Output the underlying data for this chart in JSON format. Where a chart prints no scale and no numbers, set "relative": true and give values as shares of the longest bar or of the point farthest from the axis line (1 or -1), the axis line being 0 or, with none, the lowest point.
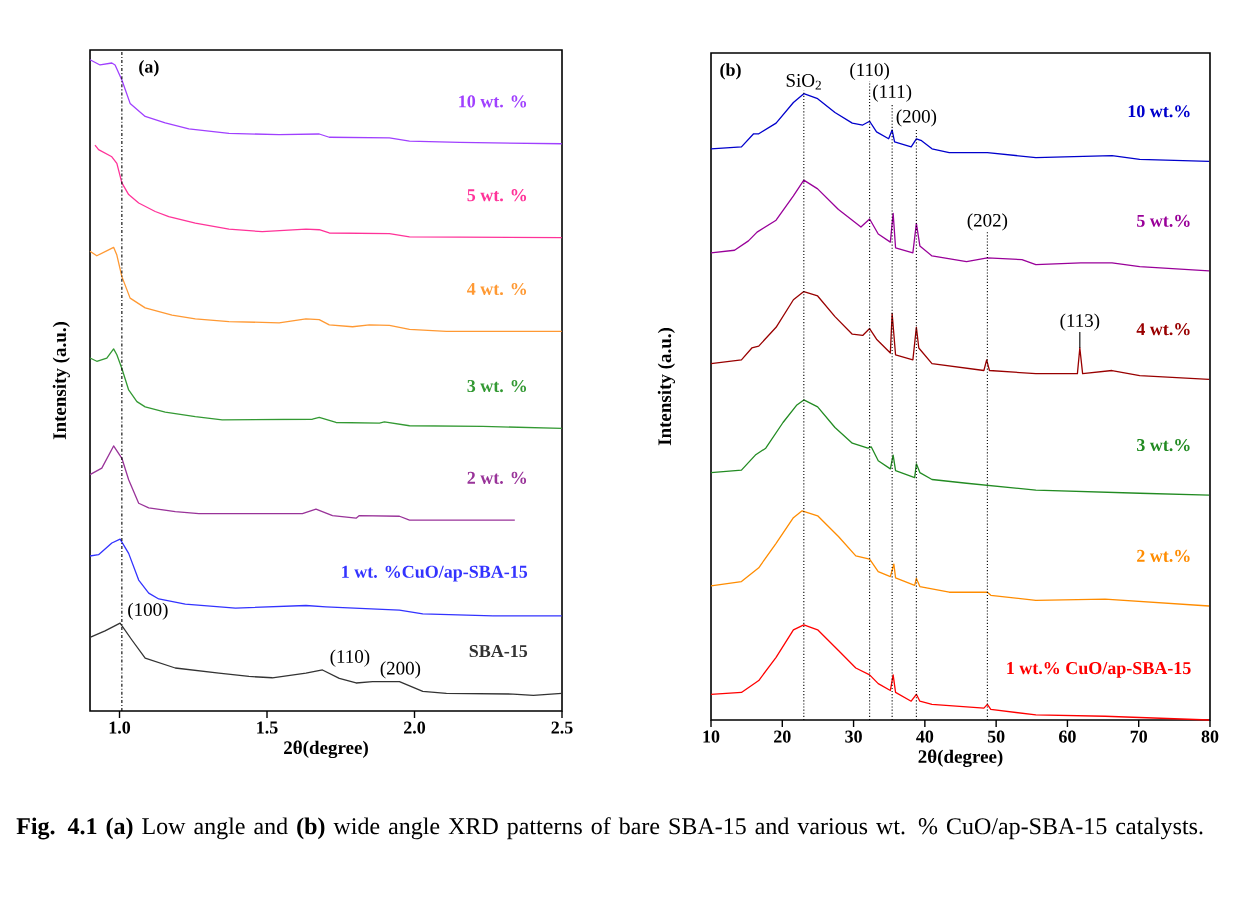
{
  "chart_data": [
    {
      "type": "line",
      "relative": true,
      "xlabel": "2θ(degree)",
      "ylabel": "Intensity (a.u.)",
      "xlim": [
        0.9,
        2.5
      ],
      "xticks": [
        {
          "value": 1,
          "label": "1.0"
        },
        1.5,
        {
          "value": 2,
          "label": "2.0"
        },
        2.5
      ],
      "series": [
        {
          "name": "10 wt. %",
          "color": "#a040ff",
          "x": [
            0.9,
            0.934,
            0.974,
            0.985,
            1.008,
            1.036,
            1.087,
            1.155,
            1.235,
            1.371,
            1.541,
            1.677,
            1.711,
            1.915,
            1.983,
            2.153,
            2.499
          ],
          "values": [
            1.0,
            0.992,
            0.995,
            0.992,
            0.969,
            0.933,
            0.913,
            0.903,
            0.894,
            0.887,
            0.885,
            0.886,
            0.881,
            0.88,
            0.875,
            0.873,
            0.871
          ]
        },
        {
          "name": "5 wt. %",
          "color": "#ff3399",
          "x": [
            0.917,
            0.929,
            0.974,
            0.991,
            1.008,
            1.031,
            1.065,
            1.121,
            1.167,
            1.257,
            1.371,
            1.484,
            1.632,
            1.677,
            1.711,
            1.915,
            1.983,
            2.499
          ],
          "values": [
            0.869,
            0.862,
            0.851,
            0.841,
            0.811,
            0.793,
            0.78,
            0.767,
            0.759,
            0.749,
            0.74,
            0.736,
            0.74,
            0.739,
            0.734,
            0.733,
            0.728,
            0.727
          ]
        },
        {
          "name": "4 wt. %",
          "color": "#ff9933",
          "x": [
            0.9,
            0.923,
            0.98,
            0.991,
            1.008,
            1.036,
            1.087,
            1.178,
            1.257,
            1.371,
            1.541,
            1.632,
            1.677,
            1.711,
            1.79,
            1.847,
            1.915,
            1.983,
            2.108,
            2.499
          ],
          "values": [
            0.706,
            0.699,
            0.712,
            0.7,
            0.667,
            0.634,
            0.619,
            0.608,
            0.602,
            0.598,
            0.596,
            0.602,
            0.601,
            0.593,
            0.59,
            0.593,
            0.592,
            0.586,
            0.583,
            0.583
          ]
        },
        {
          "name": "3 wt. %",
          "color": "#339933",
          "x": [
            0.9,
            0.923,
            0.957,
            0.98,
            0.991,
            1.008,
            1.031,
            1.059,
            1.087,
            1.155,
            1.257,
            1.348,
            1.654,
            1.677,
            1.734,
            1.881,
            1.898,
            1.983,
            2.232,
            2.499
          ],
          "values": [
            0.542,
            0.537,
            0.542,
            0.556,
            0.547,
            0.526,
            0.493,
            0.475,
            0.467,
            0.459,
            0.452,
            0.447,
            0.448,
            0.451,
            0.443,
            0.442,
            0.444,
            0.438,
            0.437,
            0.434
          ]
        },
        {
          "name": "2 wt. %",
          "color": "#993399",
          "x": [
            0.9,
            0.94,
            0.98,
            1.008,
            1.031,
            1.065,
            1.099,
            1.189,
            1.269,
            1.62,
            1.666,
            1.722,
            1.802,
            1.813,
            1.949,
            1.983,
            2.34
          ],
          "values": [
            0.363,
            0.373,
            0.407,
            0.388,
            0.355,
            0.319,
            0.312,
            0.306,
            0.303,
            0.303,
            0.31,
            0.3,
            0.296,
            0.3,
            0.299,
            0.293,
            0.293
          ]
        },
        {
          "name": "1 wt. %CuO/ap-SBA-15",
          "color": "#3333ff",
          "x": [
            0.9,
            0.929,
            0.974,
            1.002,
            1.031,
            1.065,
            1.099,
            1.133,
            1.223,
            1.393,
            1.632,
            1.7,
            1.949,
            2.028,
            2.266,
            2.499
          ],
          "values": [
            0.238,
            0.24,
            0.258,
            0.264,
            0.242,
            0.201,
            0.181,
            0.172,
            0.164,
            0.158,
            0.162,
            0.16,
            0.155,
            0.149,
            0.146,
            0.146
          ]
        },
        {
          "name": "SBA-15",
          "color": "#333333",
          "x": [
            0.9,
            0.951,
            1.002,
            1.042,
            1.087,
            1.189,
            1.337,
            1.439,
            1.518,
            1.632,
            1.688,
            1.745,
            1.802,
            1.858,
            1.949,
            2.028,
            2.108,
            2.334,
            2.403,
            2.499
          ],
          "values": [
            0.113,
            0.123,
            0.135,
            0.109,
            0.081,
            0.066,
            0.058,
            0.053,
            0.051,
            0.058,
            0.063,
            0.05,
            0.043,
            0.045,
            0.045,
            0.03,
            0.027,
            0.026,
            0.024,
            0.027
          ]
        }
      ],
      "ref_lines": [
        {
          "axis": "x",
          "value": 1.008,
          "line_style": "dashdot"
        }
      ],
      "annotations": [
        "(a)",
        {
          "text": "(100)",
          "x": 1.002,
          "y": 0.135
        },
        {
          "text": "(110)",
          "x": 1.688,
          "y": 0.063
        },
        {
          "text": "(200)",
          "x": 1.858,
          "y": 0.045
        }
      ]
    },
    {
      "type": "line",
      "relative": true,
      "xlabel": "2θ(degree)",
      "ylabel": "Intensity (a.u.)",
      "xlim": [
        10,
        80
      ],
      "xticks": [
        10,
        20,
        30,
        40,
        50,
        60,
        70,
        80
      ],
      "series": [
        {
          "name": "10 wt.%",
          "color": "#0000cc",
          "x": [
            10,
            14.27,
            15.98,
            16.7,
            19.13,
            21.56,
            23.02,
            24.96,
            27.39,
            29.82,
            31.28,
            32.25,
            33.22,
            34.92,
            35.41,
            35.75,
            38.08,
            38.81,
            39.54,
            41.0,
            43.42,
            48.77,
            55.57,
            66.26,
            70.14,
            79.86
          ],
          "values": [
            0.912,
            0.915,
            0.936,
            0.936,
            0.953,
            0.986,
            1.0,
            0.992,
            0.97,
            0.953,
            0.95,
            0.956,
            0.939,
            0.928,
            0.942,
            0.923,
            0.915,
            0.928,
            0.925,
            0.912,
            0.906,
            0.906,
            0.898,
            0.901,
            0.895,
            0.892
          ]
        },
        {
          "name": "5 wt.%",
          "color": "#990099",
          "x": [
            10,
            13.3,
            15.25,
            16.46,
            19.13,
            21.56,
            23.02,
            24.96,
            27.88,
            29.82,
            31.03,
            32.25,
            33.46,
            35.16,
            35.55,
            35.89,
            38.32,
            38.81,
            39.3,
            41.0,
            45.85,
            48.77,
            53.62,
            55.57,
            61.88,
            66.26,
            70.14,
            79.86
          ],
          "values": [
            0.746,
            0.75,
            0.765,
            0.779,
            0.798,
            0.837,
            0.862,
            0.848,
            0.815,
            0.798,
            0.787,
            0.8,
            0.776,
            0.763,
            0.809,
            0.754,
            0.746,
            0.793,
            0.757,
            0.741,
            0.732,
            0.738,
            0.735,
            0.727,
            0.73,
            0.73,
            0.724,
            0.717
          ]
        },
        {
          "name": "4 wt.%",
          "color": "#990000",
          "x": [
            10,
            14.27,
            15.73,
            16.7,
            19.13,
            21.56,
            23.02,
            24.96,
            27.39,
            29.82,
            31.28,
            32.25,
            33.22,
            35.16,
            35.41,
            35.89,
            38.32,
            38.81,
            39.15,
            41.0,
            48.28,
            48.67,
            49.06,
            55.57,
            61.4,
            61.74,
            62.13,
            66.26,
            70.14,
            79.86
          ],
          "values": [
            0.569,
            0.575,
            0.594,
            0.597,
            0.627,
            0.671,
            0.684,
            0.677,
            0.644,
            0.616,
            0.614,
            0.625,
            0.608,
            0.586,
            0.649,
            0.583,
            0.575,
            0.627,
            0.594,
            0.569,
            0.558,
            0.575,
            0.558,
            0.553,
            0.553,
            0.594,
            0.553,
            0.558,
            0.55,
            0.544
          ]
        },
        {
          "name": "3 wt.%",
          "color": "#228b22",
          "x": [
            10,
            14.27,
            16.22,
            17.68,
            20.1,
            22.05,
            23.02,
            24.96,
            27.39,
            29.82,
            32.01,
            32.49,
            33.46,
            35.16,
            35.55,
            35.89,
            38.57,
            38.81,
            39.3,
            41.0,
            45.85,
            55.57,
            70.14,
            79.86
          ],
          "values": [
            0.395,
            0.399,
            0.423,
            0.434,
            0.475,
            0.503,
            0.511,
            0.5,
            0.467,
            0.442,
            0.434,
            0.436,
            0.414,
            0.401,
            0.423,
            0.398,
            0.387,
            0.409,
            0.395,
            0.384,
            0.378,
            0.367,
            0.362,
            0.359
          ]
        },
        {
          "name": "2 wt.%",
          "color": "#ff8c00",
          "x": [
            10,
            14.27,
            16.7,
            19.13,
            21.56,
            22.78,
            24.96,
            27.88,
            30.31,
            32.25,
            33.46,
            35.16,
            35.65,
            35.89,
            38.57,
            38.81,
            39.3,
            43.42,
            48.77,
            49.25,
            55.57,
            65.28,
            79.86
          ],
          "values": [
            0.214,
            0.221,
            0.243,
            0.282,
            0.323,
            0.334,
            0.326,
            0.293,
            0.262,
            0.257,
            0.237,
            0.229,
            0.249,
            0.227,
            0.215,
            0.226,
            0.213,
            0.204,
            0.204,
            0.199,
            0.191,
            0.193,
            0.182
          ]
        },
        {
          "name": "1 wt.% CuO/ap-SBA-15",
          "color": "#ff0000",
          "x": [
            10,
            14.27,
            16.7,
            19.13,
            21.56,
            23.02,
            24.96,
            27.88,
            30.31,
            32.25,
            33.46,
            35.16,
            35.55,
            35.89,
            38.08,
            38.81,
            39.3,
            41.0,
            48.28,
            48.77,
            49.25,
            55.57,
            65.28,
            79.86
          ],
          "values": [
            0.041,
            0.044,
            0.063,
            0.1,
            0.144,
            0.152,
            0.144,
            0.111,
            0.083,
            0.072,
            0.058,
            0.047,
            0.072,
            0.044,
            0.03,
            0.041,
            0.03,
            0.025,
            0.019,
            0.025,
            0.017,
            0.008,
            0.006,
            0.0
          ]
        }
      ],
      "ref_lines": [
        {
          "axis": "x",
          "value": 23.02,
          "line_style": "dotted"
        },
        {
          "axis": "x",
          "value": 32.25,
          "line_style": "dotted"
        },
        {
          "axis": "x",
          "value": 35.41,
          "line_style": "dotted"
        },
        {
          "axis": "x",
          "value": 38.81,
          "line_style": "dotted"
        },
        {
          "axis": "x",
          "value": 48.77,
          "line_style": "dotted"
        }
      ],
      "annotations": [
        "(b)",
        "**Fig. 4.1 (a)** Low angle and **(b)** wide angle XRD patterns of bare SBA-15 and various wt. % CuO/ap-SBA-15 catalysts.",
        {
          "text": "SiO$_{2}$",
          "x": 23.02,
          "y": 1.0
        },
        {
          "text": "(110)",
          "x": 32.25,
          "y": 0.956
        },
        {
          "text": "(111)",
          "x": 35.41,
          "y": 0.942
        },
        {
          "text": "(200)",
          "x": 38.81,
          "y": 0.928
        },
        {
          "text": "(202)",
          "x": 48.77,
          "y": 0.738
        },
        {
          "text": "(113)",
          "x": 61.74,
          "y": 0.594
        }
      ]
    }
  ]
}
